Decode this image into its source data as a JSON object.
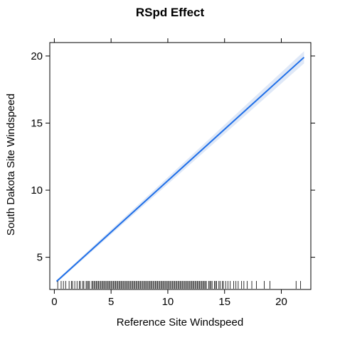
{
  "chart_data": {
    "type": "line",
    "title": "RSpd Effect",
    "xlabel": "Reference Site Windspeed",
    "ylabel": "South Dakota Site Windspeed",
    "xlim": [
      -0.4,
      22.6
    ],
    "ylim": [
      2.6,
      21.0
    ],
    "x_ticks": [
      0,
      5,
      10,
      15,
      20
    ],
    "y_ticks": [
      5,
      10,
      15,
      20
    ],
    "grid": false,
    "line_color": "#1f6fe8",
    "band_color": "#dfe8f7",
    "series": [
      {
        "x": [
          0.2,
          22.0
        ],
        "y": [
          3.2,
          19.9
        ],
        "lower": [
          3.1,
          19.45
        ],
        "upper": [
          3.3,
          20.35
        ]
      }
    ],
    "rug_x": [
      0.3,
      0.6,
      0.8,
      1.0,
      1.3,
      1.5,
      1.6,
      1.8,
      2.0,
      2.2,
      2.3,
      2.5,
      2.6,
      2.8,
      2.9,
      3.0,
      3.1,
      3.3,
      3.4,
      3.5,
      3.6,
      3.7,
      3.8,
      3.9,
      4.0,
      4.1,
      4.2,
      4.3,
      4.4,
      4.5,
      4.6,
      4.7,
      4.8,
      4.9,
      5.0,
      5.1,
      5.2,
      5.3,
      5.4,
      5.5,
      5.6,
      5.7,
      5.8,
      5.9,
      6.0,
      6.1,
      6.2,
      6.3,
      6.4,
      6.5,
      6.6,
      6.7,
      6.8,
      6.9,
      7.0,
      7.1,
      7.2,
      7.3,
      7.4,
      7.5,
      7.6,
      7.7,
      7.8,
      7.9,
      8.0,
      8.1,
      8.2,
      8.3,
      8.4,
      8.5,
      8.6,
      8.7,
      8.8,
      8.9,
      9.0,
      9.1,
      9.2,
      9.3,
      9.4,
      9.5,
      9.6,
      9.7,
      9.8,
      9.9,
      10.0,
      10.1,
      10.2,
      10.3,
      10.4,
      10.5,
      10.6,
      10.7,
      10.8,
      10.9,
      11.0,
      11.1,
      11.2,
      11.3,
      11.4,
      11.5,
      11.6,
      11.7,
      11.8,
      11.9,
      12.0,
      12.1,
      12.2,
      12.3,
      12.4,
      12.5,
      12.6,
      12.7,
      12.8,
      12.9,
      13.0,
      13.1,
      13.2,
      13.3,
      13.4,
      13.6,
      13.7,
      13.8,
      13.9,
      14.1,
      14.2,
      14.3,
      14.5,
      14.6,
      14.8,
      14.9,
      15.1,
      15.3,
      15.5,
      15.8,
      16.0,
      16.2,
      16.5,
      16.7,
      17.0,
      17.4,
      17.8,
      18.5,
      19.0,
      21.3,
      21.7
    ]
  }
}
